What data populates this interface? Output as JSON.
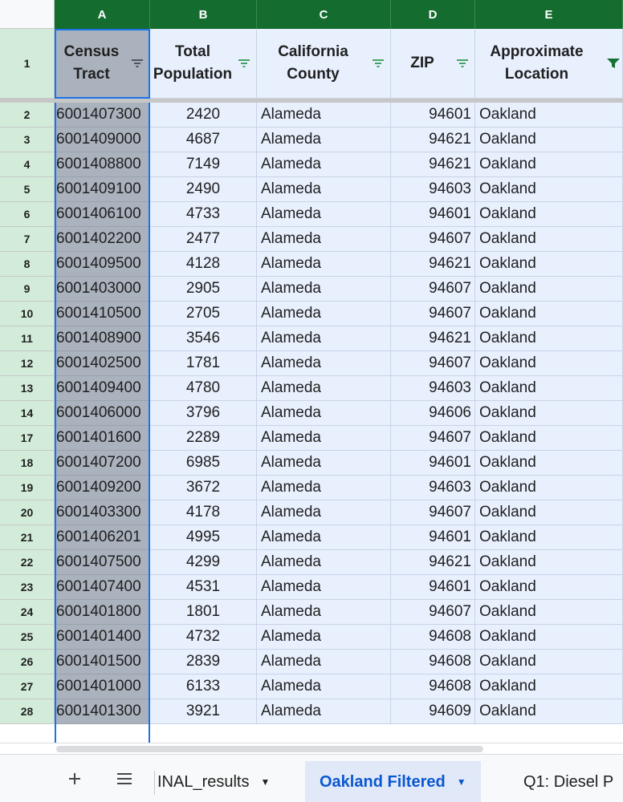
{
  "columns": [
    {
      "letter": "A"
    },
    {
      "letter": "B"
    },
    {
      "letter": "C"
    },
    {
      "letter": "D"
    },
    {
      "letter": "E"
    }
  ],
  "header_row_number": "1",
  "headers": [
    {
      "label": "Census Tract",
      "filter_active": false
    },
    {
      "label": "Total Population",
      "filter_active": false
    },
    {
      "label": "California County",
      "filter_active": false
    },
    {
      "label": "ZIP",
      "filter_active": false
    },
    {
      "label": "Approximate Location",
      "filter_active": true
    }
  ],
  "rows": [
    {
      "row": "2",
      "tract": "6001407300",
      "population": "2420",
      "county": "Alameda",
      "zip": "94601",
      "location": "Oakland"
    },
    {
      "row": "3",
      "tract": "6001409000",
      "population": "4687",
      "county": "Alameda",
      "zip": "94621",
      "location": "Oakland"
    },
    {
      "row": "4",
      "tract": "6001408800",
      "population": "7149",
      "county": "Alameda",
      "zip": "94621",
      "location": "Oakland"
    },
    {
      "row": "5",
      "tract": "6001409100",
      "population": "2490",
      "county": "Alameda",
      "zip": "94603",
      "location": "Oakland"
    },
    {
      "row": "6",
      "tract": "6001406100",
      "population": "4733",
      "county": "Alameda",
      "zip": "94601",
      "location": "Oakland"
    },
    {
      "row": "7",
      "tract": "6001402200",
      "population": "2477",
      "county": "Alameda",
      "zip": "94607",
      "location": "Oakland"
    },
    {
      "row": "8",
      "tract": "6001409500",
      "population": "4128",
      "county": "Alameda",
      "zip": "94621",
      "location": "Oakland"
    },
    {
      "row": "9",
      "tract": "6001403000",
      "population": "2905",
      "county": "Alameda",
      "zip": "94607",
      "location": "Oakland"
    },
    {
      "row": "10",
      "tract": "6001410500",
      "population": "2705",
      "county": "Alameda",
      "zip": "94607",
      "location": "Oakland"
    },
    {
      "row": "11",
      "tract": "6001408900",
      "population": "3546",
      "county": "Alameda",
      "zip": "94621",
      "location": "Oakland"
    },
    {
      "row": "12",
      "tract": "6001402500",
      "population": "1781",
      "county": "Alameda",
      "zip": "94607",
      "location": "Oakland"
    },
    {
      "row": "13",
      "tract": "6001409400",
      "population": "4780",
      "county": "Alameda",
      "zip": "94603",
      "location": "Oakland"
    },
    {
      "row": "14",
      "tract": "6001406000",
      "population": "3796",
      "county": "Alameda",
      "zip": "94606",
      "location": "Oakland"
    },
    {
      "row": "17",
      "tract": "6001401600",
      "population": "2289",
      "county": "Alameda",
      "zip": "94607",
      "location": "Oakland"
    },
    {
      "row": "18",
      "tract": "6001407200",
      "population": "6985",
      "county": "Alameda",
      "zip": "94601",
      "location": "Oakland"
    },
    {
      "row": "19",
      "tract": "6001409200",
      "population": "3672",
      "county": "Alameda",
      "zip": "94603",
      "location": "Oakland"
    },
    {
      "row": "20",
      "tract": "6001403300",
      "population": "4178",
      "county": "Alameda",
      "zip": "94607",
      "location": "Oakland"
    },
    {
      "row": "21",
      "tract": "6001406201",
      "population": "4995",
      "county": "Alameda",
      "zip": "94601",
      "location": "Oakland"
    },
    {
      "row": "22",
      "tract": "6001407500",
      "population": "4299",
      "county": "Alameda",
      "zip": "94621",
      "location": "Oakland"
    },
    {
      "row": "23",
      "tract": "6001407400",
      "population": "4531",
      "county": "Alameda",
      "zip": "94601",
      "location": "Oakland"
    },
    {
      "row": "24",
      "tract": "6001401800",
      "population": "1801",
      "county": "Alameda",
      "zip": "94607",
      "location": "Oakland"
    },
    {
      "row": "25",
      "tract": "6001401400",
      "population": "4732",
      "county": "Alameda",
      "zip": "94608",
      "location": "Oakland"
    },
    {
      "row": "26",
      "tract": "6001401500",
      "population": "2839",
      "county": "Alameda",
      "zip": "94608",
      "location": "Oakland"
    },
    {
      "row": "27",
      "tract": "6001401000",
      "population": "6133",
      "county": "Alameda",
      "zip": "94608",
      "location": "Oakland"
    },
    {
      "row": "28",
      "tract": "6001401300",
      "population": "3921",
      "county": "Alameda",
      "zip": "94609",
      "location": "Oakland"
    }
  ],
  "tabbar": {
    "add_icon": "plus-icon",
    "menu_icon": "hamburger-menu-icon",
    "tabs": [
      {
        "label": "INAL_results",
        "active": false,
        "has_dropdown": true
      },
      {
        "label": "Oakland Filtered",
        "active": true,
        "has_dropdown": true
      },
      {
        "label": "Q1: Diesel P",
        "active": false,
        "has_dropdown": false
      }
    ]
  },
  "colors": {
    "column_header_bg": "#146c2e",
    "row_number_bg": "#d3ecd9",
    "cell_bg": "#e8f0fe",
    "selected_column_bg": "#aab2bd",
    "selection_border": "#1a73e8",
    "filter_icon": "#1e8e3e",
    "filter_icon_active": "#137333",
    "active_tab_text": "#0b57d0",
    "active_tab_bg": "#e1e9f8"
  }
}
